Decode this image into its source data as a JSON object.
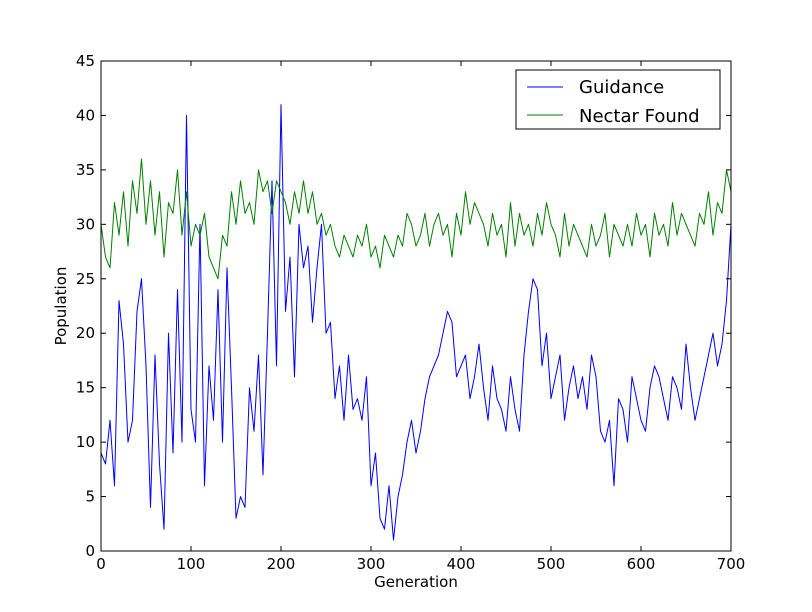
{
  "chart_data": {
    "type": "line",
    "title": "",
    "xlabel": "Generation",
    "ylabel": "Population",
    "xlim": [
      0,
      700
    ],
    "ylim": [
      0,
      45
    ],
    "xticks": [
      0,
      100,
      200,
      300,
      400,
      500,
      600,
      700
    ],
    "yticks": [
      0,
      5,
      10,
      15,
      20,
      25,
      30,
      35,
      40,
      45
    ],
    "grid": false,
    "legend_position": "top-right",
    "series": [
      {
        "name": "Guidance",
        "color": "#0000ff",
        "x": [
          0,
          5,
          10,
          15,
          20,
          25,
          30,
          35,
          40,
          45,
          50,
          55,
          60,
          65,
          70,
          75,
          80,
          85,
          90,
          95,
          100,
          105,
          110,
          115,
          120,
          125,
          130,
          135,
          140,
          145,
          150,
          155,
          160,
          165,
          170,
          175,
          180,
          185,
          190,
          195,
          200,
          205,
          210,
          215,
          220,
          225,
          230,
          235,
          240,
          245,
          250,
          255,
          260,
          265,
          270,
          275,
          280,
          285,
          290,
          295,
          300,
          305,
          310,
          315,
          320,
          325,
          330,
          335,
          340,
          345,
          350,
          355,
          360,
          365,
          370,
          375,
          380,
          385,
          390,
          395,
          400,
          405,
          410,
          415,
          420,
          425,
          430,
          435,
          440,
          445,
          450,
          455,
          460,
          465,
          470,
          475,
          480,
          485,
          490,
          495,
          500,
          505,
          510,
          515,
          520,
          525,
          530,
          535,
          540,
          545,
          550,
          555,
          560,
          565,
          570,
          575,
          580,
          585,
          590,
          595,
          600,
          605,
          610,
          615,
          620,
          625,
          630,
          635,
          640,
          645,
          650,
          655,
          660,
          665,
          670,
          675,
          680,
          685,
          690,
          695,
          700
        ],
        "values": [
          9,
          8,
          12,
          6,
          23,
          19,
          10,
          12,
          22,
          25,
          17,
          4,
          18,
          8,
          2,
          20,
          9,
          24,
          10,
          40,
          13,
          10,
          30,
          6,
          17,
          12,
          24,
          10,
          26,
          15,
          3,
          5,
          4,
          15,
          11,
          18,
          7,
          20,
          34,
          17,
          41,
          22,
          27,
          16,
          30,
          26,
          28,
          21,
          26,
          30,
          20,
          21,
          14,
          17,
          12,
          18,
          13,
          14,
          12,
          16,
          6,
          9,
          3,
          2,
          6,
          1,
          5,
          7,
          10,
          12,
          9,
          11,
          14,
          16,
          17,
          18,
          20,
          22,
          21,
          16,
          17,
          18,
          14,
          16,
          19,
          15,
          12,
          17,
          14,
          13,
          11,
          16,
          13,
          11,
          18,
          22,
          25,
          24,
          17,
          20,
          14,
          16,
          18,
          12,
          15,
          17,
          14,
          16,
          13,
          18,
          16,
          11,
          10,
          12,
          6,
          14,
          13,
          10,
          16,
          14,
          12,
          11,
          15,
          17,
          16,
          14,
          12,
          16,
          15,
          13,
          19,
          15,
          12,
          14,
          16,
          18,
          20,
          17,
          19,
          23,
          30
        ],
        "type": "line"
      },
      {
        "name": "Nectar Found",
        "color": "#008000",
        "x": [
          0,
          5,
          10,
          15,
          20,
          25,
          30,
          35,
          40,
          45,
          50,
          55,
          60,
          65,
          70,
          75,
          80,
          85,
          90,
          95,
          100,
          105,
          110,
          115,
          120,
          125,
          130,
          135,
          140,
          145,
          150,
          155,
          160,
          165,
          170,
          175,
          180,
          185,
          190,
          195,
          200,
          205,
          210,
          215,
          220,
          225,
          230,
          235,
          240,
          245,
          250,
          255,
          260,
          265,
          270,
          275,
          280,
          285,
          290,
          295,
          300,
          305,
          310,
          315,
          320,
          325,
          330,
          335,
          340,
          345,
          350,
          355,
          360,
          365,
          370,
          375,
          380,
          385,
          390,
          395,
          400,
          405,
          410,
          415,
          420,
          425,
          430,
          435,
          440,
          445,
          450,
          455,
          460,
          465,
          470,
          475,
          480,
          485,
          490,
          495,
          500,
          505,
          510,
          515,
          520,
          525,
          530,
          535,
          540,
          545,
          550,
          555,
          560,
          565,
          570,
          575,
          580,
          585,
          590,
          595,
          600,
          605,
          610,
          615,
          620,
          625,
          630,
          635,
          640,
          645,
          650,
          655,
          660,
          665,
          670,
          675,
          680,
          685,
          690,
          695,
          700
        ],
        "values": [
          30,
          27,
          26,
          32,
          29,
          33,
          28,
          34,
          31,
          36,
          30,
          34,
          29,
          33,
          27,
          32,
          31,
          35,
          29,
          33,
          28,
          30,
          29,
          31,
          27,
          26,
          25,
          29,
          28,
          33,
          30,
          34,
          31,
          32,
          30,
          35,
          33,
          34,
          31,
          34,
          33,
          32,
          30,
          33,
          31,
          34,
          31,
          33,
          30,
          31,
          29,
          30,
          28,
          27,
          29,
          28,
          27,
          29,
          28,
          30,
          27,
          28,
          26,
          29,
          28,
          27,
          29,
          28,
          31,
          30,
          28,
          29,
          31,
          28,
          30,
          31,
          29,
          30,
          27,
          31,
          29,
          33,
          30,
          32,
          31,
          30,
          28,
          31,
          29,
          30,
          27,
          32,
          28,
          31,
          29,
          30,
          28,
          31,
          29,
          32,
          30,
          29,
          27,
          31,
          28,
          30,
          29,
          28,
          27,
          30,
          28,
          29,
          31,
          27,
          30,
          29,
          28,
          30,
          28,
          31,
          29,
          30,
          27,
          31,
          29,
          30,
          28,
          32,
          29,
          31,
          30,
          29,
          28,
          31,
          30,
          33,
          29,
          32,
          31,
          35,
          33
        ],
        "type": "line"
      }
    ]
  }
}
